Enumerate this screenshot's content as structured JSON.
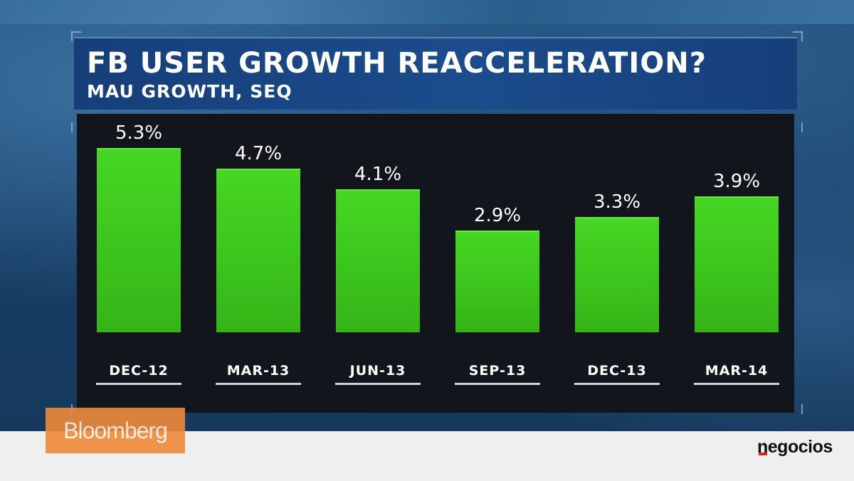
{
  "header": {
    "title": "FB USER GROWTH REACCELERATION?",
    "subtitle": "MAU GROWTH, SEQ"
  },
  "chart_data": {
    "type": "bar",
    "title": "FB USER GROWTH REACCELERATION?",
    "subtitle": "MAU GROWTH, SEQ",
    "categories": [
      "DEC-12",
      "MAR-13",
      "JUN-13",
      "SEP-13",
      "DEC-13",
      "MAR-14"
    ],
    "values": [
      5.3,
      4.7,
      4.1,
      2.9,
      3.3,
      3.9
    ],
    "labels": [
      "5.3%",
      "4.7%",
      "4.1%",
      "2.9%",
      "3.3%",
      "3.9%"
    ],
    "unit": "%",
    "ylim": [
      0,
      5.3
    ],
    "grid": false,
    "bar_color": "#3fcb1f"
  },
  "branding": {
    "broadcaster": "Bloomberg",
    "broadcaster_color": "#f08a3a",
    "publisher": "negocios",
    "publisher_accent": "#d9261c"
  }
}
